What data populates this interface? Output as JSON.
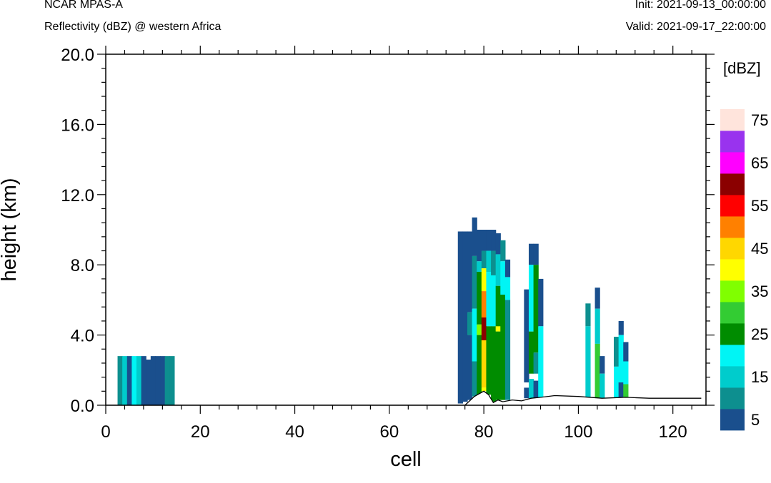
{
  "header": {
    "model": "NCAR MPAS-A",
    "field": "Reflectivity (dBZ) @ western Africa",
    "init": "Init: 2021-09-13_00:00:00",
    "valid": "Valid: 2021-09-17_22:00:00"
  },
  "chart_data": {
    "type": "heatmap",
    "title": "Reflectivity (dBZ) @ western Africa",
    "xlabel": "cell",
    "ylabel": "height (km)",
    "xlim": [
      0,
      127
    ],
    "ylim": [
      0,
      20
    ],
    "xticks": [
      "0",
      "20",
      "40",
      "60",
      "80",
      "100",
      "120"
    ],
    "yticks": [
      "0.0",
      "4.0",
      "8.0",
      "12.0",
      "16.0",
      "20.0"
    ],
    "colorbar": {
      "unit": "[dBZ]",
      "labels": [
        "5",
        "15",
        "25",
        "35",
        "45",
        "55",
        "65",
        "75"
      ],
      "colors": [
        "#1a4f8d",
        "#0d8f8f",
        "#00cccc",
        "#00f5f5",
        "#008c00",
        "#33cc33",
        "#80ff00",
        "#ffff00",
        "#ffd700",
        "#ff8000",
        "#ff0000",
        "#8b0000",
        "#ff00ff",
        "#9933ee",
        "#ffe4dc"
      ]
    },
    "terrain": [
      [
        0,
        0
      ],
      [
        76,
        0
      ],
      [
        78,
        0.5
      ],
      [
        80,
        0.8
      ],
      [
        81,
        0.6
      ],
      [
        82,
        0.15
      ],
      [
        83,
        0.3
      ],
      [
        84,
        0.2
      ],
      [
        86,
        0.3
      ],
      [
        88,
        0.25
      ],
      [
        90,
        0.4
      ],
      [
        92,
        0.45
      ],
      [
        95,
        0.55
      ],
      [
        100,
        0.5
      ],
      [
        105,
        0.4
      ],
      [
        110,
        0.45
      ],
      [
        115,
        0.4
      ],
      [
        120,
        0.4
      ],
      [
        126,
        0.4
      ]
    ],
    "columns": [
      {
        "x": 3,
        "segs": [
          [
            0,
            2.8,
            1
          ]
        ]
      },
      {
        "x": 4,
        "segs": [
          [
            0,
            2.8,
            2
          ]
        ]
      },
      {
        "x": 5,
        "segs": [
          [
            0,
            2.8,
            0
          ]
        ]
      },
      {
        "x": 6,
        "segs": [
          [
            0,
            2.8,
            3
          ]
        ]
      },
      {
        "x": 7,
        "segs": [
          [
            0,
            2.8,
            2
          ]
        ]
      },
      {
        "x": 8,
        "segs": [
          [
            0,
            2.8,
            0
          ]
        ]
      },
      {
        "x": 9,
        "segs": [
          [
            0,
            2.6,
            0
          ]
        ]
      },
      {
        "x": 10,
        "segs": [
          [
            0,
            2.8,
            0
          ]
        ]
      },
      {
        "x": 11,
        "segs": [
          [
            0,
            2.8,
            0
          ]
        ]
      },
      {
        "x": 12,
        "segs": [
          [
            0,
            2.8,
            0
          ]
        ]
      },
      {
        "x": 13,
        "segs": [
          [
            0,
            2.8,
            1
          ]
        ]
      },
      {
        "x": 14,
        "segs": [
          [
            0,
            2.8,
            1
          ]
        ]
      },
      {
        "x": 75,
        "segs": [
          [
            0.1,
            9.9,
            0
          ]
        ]
      },
      {
        "x": 76,
        "segs": [
          [
            0.2,
            9.9,
            0
          ]
        ]
      },
      {
        "x": 77,
        "segs": [
          [
            5.3,
            9.9,
            0
          ],
          [
            4.0,
            5.3,
            1
          ],
          [
            0.3,
            4.0,
            0
          ]
        ]
      },
      {
        "x": 78,
        "segs": [
          [
            8.5,
            10.7,
            0
          ],
          [
            5.5,
            8.5,
            1
          ],
          [
            2.5,
            5.5,
            3
          ],
          [
            0.5,
            2.5,
            1
          ]
        ]
      },
      {
        "x": 79,
        "segs": [
          [
            8.2,
            10.0,
            0
          ],
          [
            7.6,
            8.2,
            2
          ],
          [
            4.6,
            7.6,
            4
          ],
          [
            4.0,
            4.6,
            6
          ],
          [
            0.6,
            4.0,
            4
          ]
        ]
      },
      {
        "x": 80,
        "segs": [
          [
            8.8,
            10.0,
            0
          ],
          [
            7.8,
            8.8,
            1
          ],
          [
            6.5,
            7.8,
            7
          ],
          [
            5.0,
            6.5,
            9
          ],
          [
            3.7,
            5.0,
            11
          ],
          [
            1.0,
            3.7,
            8
          ],
          [
            0.8,
            1.0,
            7
          ]
        ]
      },
      {
        "x": 81,
        "segs": [
          [
            8.8,
            10.0,
            0
          ],
          [
            7.6,
            8.8,
            2
          ],
          [
            4.5,
            7.6,
            3
          ],
          [
            0.6,
            4.5,
            4
          ]
        ]
      },
      {
        "x": 82,
        "segs": [
          [
            8.8,
            10.0,
            0
          ],
          [
            7.4,
            8.8,
            1
          ],
          [
            4.5,
            7.4,
            3
          ],
          [
            0.2,
            4.5,
            4
          ]
        ]
      },
      {
        "x": 83,
        "segs": [
          [
            8.6,
            9.8,
            0
          ],
          [
            6.8,
            8.6,
            2
          ],
          [
            4.2,
            6.8,
            4
          ],
          [
            4.2,
            4.5,
            7
          ],
          [
            0.3,
            4.2,
            4
          ]
        ]
      },
      {
        "x": 84,
        "segs": [
          [
            8.2,
            9.4,
            1
          ],
          [
            6.3,
            8.2,
            3
          ],
          [
            0.3,
            6.3,
            4
          ]
        ]
      },
      {
        "x": 85,
        "segs": [
          [
            7.3,
            8.3,
            0
          ],
          [
            6.0,
            7.3,
            3
          ],
          [
            0.3,
            6.0,
            1
          ]
        ]
      },
      {
        "x": 89,
        "segs": [
          [
            1.3,
            6.6,
            0
          ],
          [
            0.4,
            1.0,
            0
          ]
        ]
      },
      {
        "x": 90,
        "segs": [
          [
            8.0,
            9.2,
            0
          ],
          [
            4.2,
            8.0,
            3
          ],
          [
            1.8,
            4.2,
            4
          ],
          [
            0.4,
            1.5,
            2
          ]
        ]
      },
      {
        "x": 91,
        "segs": [
          [
            8.0,
            9.2,
            0
          ],
          [
            3.0,
            8.0,
            4
          ],
          [
            1.8,
            3.0,
            1
          ],
          [
            0.4,
            1.4,
            0
          ]
        ]
      },
      {
        "x": 92,
        "segs": [
          [
            4.5,
            7.2,
            0
          ],
          [
            0.4,
            4.5,
            3
          ]
        ]
      },
      {
        "x": 102,
        "segs": [
          [
            4.5,
            5.8,
            1
          ],
          [
            0.4,
            4.5,
            2
          ]
        ]
      },
      {
        "x": 104,
        "segs": [
          [
            5.5,
            6.7,
            0
          ],
          [
            3.5,
            5.5,
            2
          ],
          [
            0.4,
            3.5,
            5
          ]
        ]
      },
      {
        "x": 105,
        "segs": [
          [
            1.8,
            2.8,
            0
          ],
          [
            0.4,
            1.8,
            2
          ]
        ]
      },
      {
        "x": 108,
        "segs": [
          [
            2.2,
            3.9,
            1
          ],
          [
            0.4,
            2.2,
            3
          ]
        ]
      },
      {
        "x": 109,
        "segs": [
          [
            4.0,
            4.8,
            0
          ],
          [
            1.3,
            4.0,
            3
          ],
          [
            0.4,
            1.3,
            0
          ]
        ]
      },
      {
        "x": 110,
        "segs": [
          [
            2.5,
            3.6,
            0
          ],
          [
            1.2,
            2.5,
            3
          ],
          [
            0.4,
            1.2,
            5
          ]
        ]
      }
    ]
  }
}
